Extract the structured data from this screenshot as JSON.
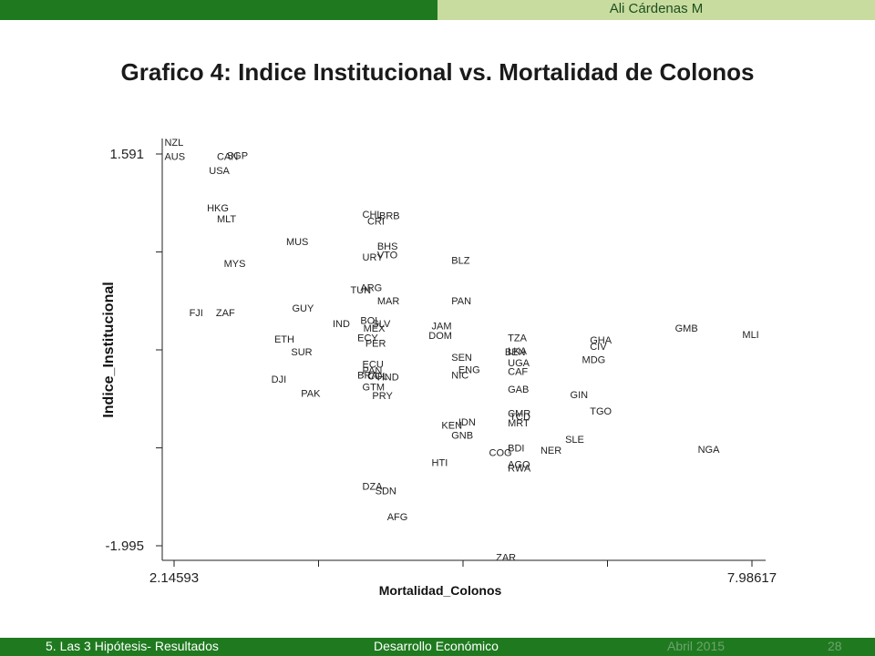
{
  "header": {
    "author": "Ali Cárdenas M"
  },
  "slide": {
    "title": "Grafico 4: Indice Institucional vs. Mortalidad de Colonos"
  },
  "footer": {
    "section": "5. Las  3 Hipótesis- Resultados",
    "course": "Desarrollo Económico",
    "date": "Abril 2015",
    "page": "28"
  },
  "colors": {
    "header_bar": "#1f7a1f",
    "header_light": "#c8dca0",
    "footer_bar": "#1f7a1f"
  },
  "chart_data": {
    "type": "scatter",
    "xlabel": "Mortalidad_Colonos",
    "ylabel": "Indice_Institucional",
    "xlim": [
      2.14593,
      7.98617
    ],
    "ylim": [
      -1.995,
      1.591
    ],
    "xticks": [
      2.14593,
      7.98617
    ],
    "yticks": [
      1.591,
      -1.995
    ],
    "grid": false,
    "points": [
      {
        "label": "NZL",
        "x": 2.15,
        "y": 1.7
      },
      {
        "label": "AUS",
        "x": 2.15,
        "y": 1.57
      },
      {
        "label": "CAN",
        "x": 2.68,
        "y": 1.57
      },
      {
        "label": "SGP",
        "x": 2.78,
        "y": 1.58
      },
      {
        "label": "USA",
        "x": 2.6,
        "y": 1.44
      },
      {
        "label": "HKG",
        "x": 2.58,
        "y": 1.1
      },
      {
        "label": "MLT",
        "x": 2.68,
        "y": 1.0
      },
      {
        "label": "MUS",
        "x": 3.38,
        "y": 0.79
      },
      {
        "label": "MYS",
        "x": 2.75,
        "y": 0.59
      },
      {
        "label": "FJI",
        "x": 2.4,
        "y": 0.14
      },
      {
        "label": "ZAF",
        "x": 2.67,
        "y": 0.14
      },
      {
        "label": "GUY",
        "x": 3.44,
        "y": 0.18
      },
      {
        "label": "IND",
        "x": 3.85,
        "y": 0.04
      },
      {
        "label": "ETH",
        "x": 3.26,
        "y": -0.1
      },
      {
        "label": "SUR",
        "x": 3.43,
        "y": -0.22
      },
      {
        "label": "DJI",
        "x": 3.23,
        "y": -0.47
      },
      {
        "label": "PAK",
        "x": 3.53,
        "y": -0.6
      },
      {
        "label": "CHL",
        "x": 4.15,
        "y": 1.04
      },
      {
        "label": "BRB",
        "x": 4.32,
        "y": 1.03
      },
      {
        "label": "CRI",
        "x": 4.2,
        "y": 0.98
      },
      {
        "label": "BHS",
        "x": 4.3,
        "y": 0.75
      },
      {
        "label": "VTO",
        "x": 4.3,
        "y": 0.67
      },
      {
        "label": "URY",
        "x": 4.15,
        "y": 0.65
      },
      {
        "label": "ARG",
        "x": 4.13,
        "y": 0.37
      },
      {
        "label": "TUN",
        "x": 4.03,
        "y": 0.35
      },
      {
        "label": "MAR",
        "x": 4.3,
        "y": 0.25
      },
      {
        "label": "BOL",
        "x": 4.13,
        "y": 0.07
      },
      {
        "label": "SLV",
        "x": 4.25,
        "y": 0.04
      },
      {
        "label": "MEX",
        "x": 4.16,
        "y": 0.0
      },
      {
        "label": "ECY",
        "x": 4.1,
        "y": -0.09
      },
      {
        "label": "PER",
        "x": 4.18,
        "y": -0.14
      },
      {
        "label": "ECU",
        "x": 4.15,
        "y": -0.33
      },
      {
        "label": "PAN",
        "x": 4.15,
        "y": -0.39
      },
      {
        "label": "BRA",
        "x": 4.1,
        "y": -0.43
      },
      {
        "label": "COL",
        "x": 4.2,
        "y": -0.44
      },
      {
        "label": "HND",
        "x": 4.3,
        "y": -0.45
      },
      {
        "label": "GTM",
        "x": 4.15,
        "y": -0.54
      },
      {
        "label": "PRY",
        "x": 4.25,
        "y": -0.62
      },
      {
        "label": "BLZ",
        "x": 5.05,
        "y": 0.62
      },
      {
        "label": "PAN",
        "x": 5.05,
        "y": 0.25
      },
      {
        "label": "JAM",
        "x": 4.85,
        "y": 0.02
      },
      {
        "label": "DOM",
        "x": 4.82,
        "y": -0.07
      },
      {
        "label": "SEN",
        "x": 5.05,
        "y": -0.27
      },
      {
        "label": "NIC",
        "x": 5.05,
        "y": -0.43
      },
      {
        "label": "ENG",
        "x": 5.12,
        "y": -0.38
      },
      {
        "label": "KEN",
        "x": 4.95,
        "y": -0.89
      },
      {
        "label": "IDN",
        "x": 5.12,
        "y": -0.86
      },
      {
        "label": "GNB",
        "x": 5.05,
        "y": -0.98
      },
      {
        "label": "HTI",
        "x": 4.85,
        "y": -1.23
      },
      {
        "label": "DZA",
        "x": 4.15,
        "y": -1.45
      },
      {
        "label": "SDN",
        "x": 4.28,
        "y": -1.49
      },
      {
        "label": "AFG",
        "x": 4.4,
        "y": -1.73
      },
      {
        "label": "TZA",
        "x": 5.62,
        "y": -0.09
      },
      {
        "label": "BEN",
        "x": 5.59,
        "y": -0.22
      },
      {
        "label": "LKA",
        "x": 5.62,
        "y": -0.21
      },
      {
        "label": "UGA",
        "x": 5.62,
        "y": -0.32
      },
      {
        "label": "CAF",
        "x": 5.62,
        "y": -0.4
      },
      {
        "label": "GAB",
        "x": 5.62,
        "y": -0.56
      },
      {
        "label": "CMR",
        "x": 5.62,
        "y": -0.78
      },
      {
        "label": "TCD",
        "x": 5.64,
        "y": -0.81
      },
      {
        "label": "MRT",
        "x": 5.62,
        "y": -0.87
      },
      {
        "label": "BDI",
        "x": 5.62,
        "y": -1.1
      },
      {
        "label": "COG",
        "x": 5.43,
        "y": -1.14
      },
      {
        "label": "AGO",
        "x": 5.62,
        "y": -1.25
      },
      {
        "label": "RWA",
        "x": 5.62,
        "y": -1.28
      },
      {
        "label": "ZAR",
        "x": 5.5,
        "y": -2.1
      },
      {
        "label": "NER",
        "x": 5.95,
        "y": -1.12
      },
      {
        "label": "SLE",
        "x": 6.2,
        "y": -1.02
      },
      {
        "label": "GIN",
        "x": 6.25,
        "y": -0.61
      },
      {
        "label": "TGO",
        "x": 6.45,
        "y": -0.76
      },
      {
        "label": "MDG",
        "x": 6.37,
        "y": -0.29
      },
      {
        "label": "GHA",
        "x": 6.45,
        "y": -0.11
      },
      {
        "label": "CIV",
        "x": 6.45,
        "y": -0.17
      },
      {
        "label": "GMB",
        "x": 7.31,
        "y": 0.0
      },
      {
        "label": "MLI",
        "x": 7.99,
        "y": -0.06
      },
      {
        "label": "NGA",
        "x": 7.54,
        "y": -1.11
      }
    ]
  }
}
